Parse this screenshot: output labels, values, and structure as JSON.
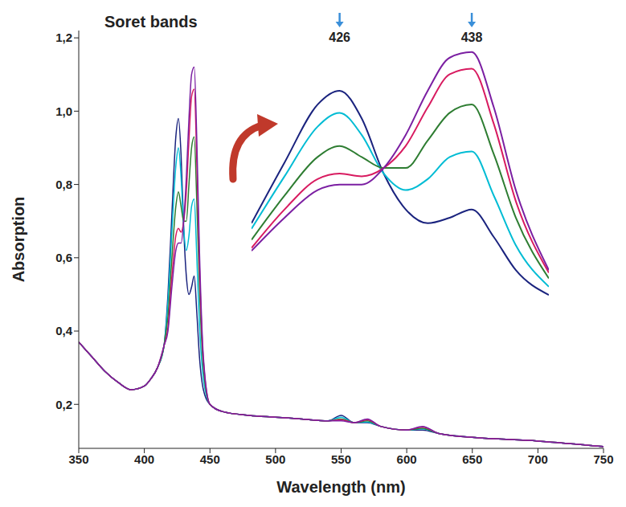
{
  "chart_data": [
    {
      "type": "line",
      "title": "Soret bands",
      "xlabel": "Wavelength (nm)",
      "ylabel": "Absorption",
      "x": [
        350,
        360,
        370,
        380,
        390,
        400,
        405,
        410,
        415,
        418,
        421,
        424,
        426,
        428,
        430,
        432,
        434,
        436,
        438,
        440,
        442,
        445,
        450,
        460,
        480,
        500,
        520,
        540,
        550,
        560,
        570,
        580,
        600,
        612,
        625,
        650,
        700,
        750
      ],
      "series": [
        {
          "color": "#1a237e",
          "values": [
            0.37,
            0.33,
            0.29,
            0.26,
            0.24,
            0.25,
            0.27,
            0.3,
            0.36,
            0.5,
            0.72,
            0.93,
            0.98,
            0.88,
            0.68,
            0.55,
            0.5,
            0.52,
            0.55,
            0.45,
            0.33,
            0.24,
            0.2,
            0.18,
            0.17,
            0.165,
            0.16,
            0.155,
            0.17,
            0.15,
            0.15,
            0.14,
            0.13,
            0.13,
            0.12,
            0.11,
            0.1,
            0.085
          ]
        },
        {
          "color": "#00bcd4",
          "values": [
            0.37,
            0.33,
            0.29,
            0.26,
            0.24,
            0.25,
            0.27,
            0.3,
            0.36,
            0.48,
            0.67,
            0.85,
            0.9,
            0.82,
            0.68,
            0.62,
            0.66,
            0.74,
            0.76,
            0.6,
            0.42,
            0.27,
            0.2,
            0.18,
            0.17,
            0.165,
            0.16,
            0.155,
            0.165,
            0.15,
            0.152,
            0.14,
            0.13,
            0.133,
            0.12,
            0.11,
            0.1,
            0.085
          ]
        },
        {
          "color": "#2e7d32",
          "values": [
            0.37,
            0.33,
            0.29,
            0.26,
            0.24,
            0.25,
            0.27,
            0.3,
            0.36,
            0.44,
            0.6,
            0.74,
            0.78,
            0.74,
            0.7,
            0.7,
            0.8,
            0.9,
            0.93,
            0.75,
            0.52,
            0.3,
            0.2,
            0.18,
            0.17,
            0.165,
            0.16,
            0.155,
            0.16,
            0.15,
            0.155,
            0.14,
            0.13,
            0.135,
            0.12,
            0.11,
            0.1,
            0.085
          ]
        },
        {
          "color": "#d81b60",
          "values": [
            0.37,
            0.33,
            0.29,
            0.26,
            0.24,
            0.25,
            0.27,
            0.3,
            0.36,
            0.41,
            0.55,
            0.66,
            0.68,
            0.67,
            0.7,
            0.78,
            0.92,
            1.04,
            1.06,
            0.86,
            0.58,
            0.32,
            0.2,
            0.18,
            0.17,
            0.165,
            0.16,
            0.155,
            0.158,
            0.15,
            0.158,
            0.14,
            0.13,
            0.138,
            0.12,
            0.11,
            0.1,
            0.085
          ]
        },
        {
          "color": "#7b1fa2",
          "values": [
            0.37,
            0.33,
            0.29,
            0.26,
            0.24,
            0.25,
            0.27,
            0.3,
            0.36,
            0.4,
            0.52,
            0.62,
            0.64,
            0.64,
            0.7,
            0.82,
            0.98,
            1.1,
            1.12,
            0.92,
            0.62,
            0.33,
            0.2,
            0.18,
            0.17,
            0.165,
            0.16,
            0.155,
            0.155,
            0.15,
            0.16,
            0.14,
            0.13,
            0.14,
            0.12,
            0.11,
            0.1,
            0.085
          ]
        }
      ],
      "xlim": [
        350,
        750
      ],
      "xticks": [
        350,
        400,
        450,
        500,
        550,
        600,
        650,
        700,
        750
      ],
      "ylim": [
        0.08,
        1.22
      ],
      "yticks": [
        {
          "value": 0.2,
          "label": "0,2"
        },
        {
          "value": 0.4,
          "label": "0,4"
        },
        {
          "value": 0.6,
          "label": "0,6"
        },
        {
          "value": 0.8,
          "label": "0,8"
        },
        {
          "value": 1.0,
          "label": "1,0"
        },
        {
          "value": 1.2,
          "label": "1,2"
        }
      ]
    },
    {
      "type": "line",
      "tick_labels": false,
      "annotations": [
        {
          "text": "426",
          "x": 426
        },
        {
          "text": "438",
          "x": 438
        }
      ],
      "x": [
        418,
        421,
        424,
        426,
        428,
        430,
        432,
        434,
        436,
        438,
        440,
        442,
        445
      ],
      "series": [
        {
          "color": "#1a237e",
          "values": [
            0.5,
            0.72,
            0.93,
            0.98,
            0.88,
            0.68,
            0.55,
            0.5,
            0.52,
            0.55,
            0.45,
            0.33,
            0.24
          ]
        },
        {
          "color": "#00bcd4",
          "values": [
            0.48,
            0.67,
            0.85,
            0.9,
            0.82,
            0.68,
            0.62,
            0.66,
            0.74,
            0.76,
            0.6,
            0.42,
            0.27
          ]
        },
        {
          "color": "#2e7d32",
          "values": [
            0.44,
            0.6,
            0.74,
            0.78,
            0.74,
            0.7,
            0.7,
            0.8,
            0.9,
            0.93,
            0.75,
            0.52,
            0.3
          ]
        },
        {
          "color": "#d81b60",
          "values": [
            0.41,
            0.55,
            0.66,
            0.68,
            0.67,
            0.7,
            0.78,
            0.92,
            1.04,
            1.06,
            0.86,
            0.58,
            0.32
          ]
        },
        {
          "color": "#7b1fa2",
          "values": [
            0.4,
            0.52,
            0.62,
            0.64,
            0.64,
            0.7,
            0.82,
            0.98,
            1.1,
            1.12,
            0.92,
            0.62,
            0.33
          ]
        }
      ],
      "xlim": [
        418,
        445
      ],
      "ylim": [
        0.15,
        1.14
      ]
    }
  ]
}
